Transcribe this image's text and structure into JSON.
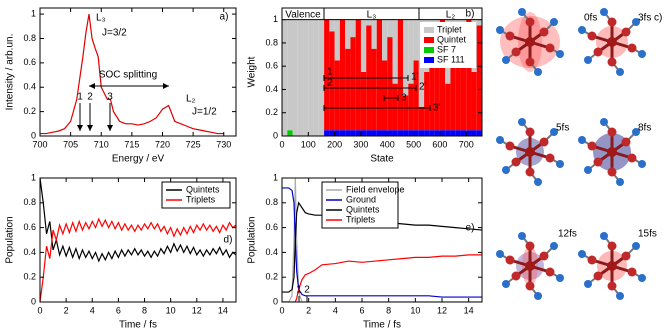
{
  "chart_data": [
    {
      "type": "line",
      "panel_label": "a)",
      "xlabel": "Energy / eV",
      "ylabel": "Intensity / arb.un.",
      "x": [
        700,
        701,
        702,
        703,
        704,
        705,
        706,
        707,
        707.5,
        708,
        708.5,
        709,
        709.5,
        710,
        711,
        711.5,
        712,
        713,
        714,
        715,
        716,
        717,
        718,
        719,
        720,
        721,
        722,
        723,
        724,
        725,
        726,
        727,
        728,
        729,
        730
      ],
      "series": [
        {
          "color": "#e00000",
          "values": [
            0.02,
            0.02,
            0.03,
            0.04,
            0.06,
            0.12,
            0.3,
            0.65,
            0.85,
            1.0,
            0.8,
            0.72,
            0.65,
            0.4,
            0.3,
            0.3,
            0.2,
            0.12,
            0.1,
            0.1,
            0.09,
            0.1,
            0.12,
            0.15,
            0.22,
            0.25,
            0.12,
            0.1,
            0.08,
            0.06,
            0.05,
            0.04,
            0.03,
            0.02,
            0.02
          ]
        }
      ],
      "xlim": [
        700,
        732
      ],
      "xticks": [
        700,
        705,
        710,
        715,
        720,
        725,
        730
      ],
      "ylim": [
        0,
        1.05
      ],
      "yticks": [
        0,
        0.2,
        0.4,
        0.6,
        0.8,
        1
      ],
      "annotations": [
        "L₃",
        "J=3/2",
        "SOC splitting",
        "1",
        "2",
        "3",
        "L₂",
        "J=1/2"
      ]
    },
    {
      "type": "bar",
      "stacked": true,
      "panel_label": "b)",
      "xlabel": "State",
      "ylabel": "Weight",
      "x": [
        0,
        20,
        40,
        60,
        80,
        100,
        120,
        140,
        160,
        180,
        200,
        220,
        240,
        260,
        280,
        300,
        320,
        340,
        360,
        380,
        400,
        420,
        440,
        460,
        480,
        500,
        520,
        540,
        560,
        580,
        600,
        620,
        640,
        660,
        680,
        700,
        720,
        740
      ],
      "series": [
        {
          "name": "Triplet",
          "color": "#c8c8c8",
          "values": [
            1,
            0.95,
            1,
            1,
            1,
            1,
            1,
            1,
            0,
            0.1,
            0.35,
            0,
            0.25,
            0.15,
            0,
            0.45,
            0.05,
            0.25,
            0,
            0.35,
            0.15,
            0.55,
            0,
            0.65,
            0.55,
            0.35,
            0.75,
            0.45,
            0.15,
            0.35,
            0,
            0.55,
            0.05,
            0.25,
            0.15,
            0,
            0.45,
            0.05
          ]
        },
        {
          "name": "Quintet",
          "color": "#ff0000",
          "values": [
            0,
            0,
            0,
            0,
            0,
            0,
            0,
            0,
            0.95,
            0.85,
            0.6,
            0.95,
            0.7,
            0.8,
            0.95,
            0.5,
            0.9,
            0.7,
            0.95,
            0.6,
            0.8,
            0.4,
            0.95,
            0.3,
            0.4,
            0.6,
            0.2,
            0.5,
            0.8,
            0.6,
            0.95,
            0.4,
            0.9,
            0.7,
            0.8,
            0.95,
            0.5,
            0.9
          ]
        },
        {
          "name": "SF 7",
          "color": "#00cc00",
          "values": [
            0,
            0.05,
            0,
            0,
            0,
            0,
            0,
            0,
            0,
            0,
            0,
            0,
            0,
            0,
            0,
            0,
            0,
            0,
            0,
            0,
            0,
            0,
            0,
            0,
            0,
            0,
            0,
            0,
            0,
            0,
            0,
            0,
            0,
            0,
            0,
            0,
            0,
            0
          ]
        },
        {
          "name": "SF 111",
          "color": "#0000ff",
          "values": [
            0,
            0,
            0,
            0,
            0,
            0,
            0,
            0,
            0.05,
            0.05,
            0.05,
            0.05,
            0.05,
            0.05,
            0.05,
            0.05,
            0.05,
            0.05,
            0.05,
            0.05,
            0.05,
            0.05,
            0.05,
            0.05,
            0.05,
            0.05,
            0.05,
            0.05,
            0.05,
            0.05,
            0.05,
            0.05,
            0.05,
            0.05,
            0.05,
            0.05,
            0.05,
            0.05
          ]
        }
      ],
      "xlim": [
        0,
        760
      ],
      "xticks": [
        0,
        100,
        200,
        300,
        400,
        500,
        600,
        700
      ],
      "ylim": [
        0,
        1.1
      ],
      "yticks": [
        0,
        0.2,
        0.4,
        0.6,
        0.8,
        1
      ],
      "legend": "top-right",
      "regions": [
        "Valence",
        "L₃",
        "L₂"
      ],
      "annotations": [
        "1",
        "2",
        "3",
        "1'",
        "2'",
        "3'"
      ]
    },
    {
      "type": "line",
      "panel_label": "d)",
      "xlabel": "Time / fs",
      "ylabel": "Population",
      "x": [
        0,
        0.25,
        0.5,
        0.75,
        1,
        1.25,
        1.5,
        1.75,
        2,
        2.25,
        2.5,
        2.75,
        3,
        3.25,
        3.5,
        3.75,
        4,
        4.25,
        4.5,
        4.75,
        5,
        5.25,
        5.5,
        5.75,
        6,
        6.25,
        6.5,
        6.75,
        7,
        7.25,
        7.5,
        7.75,
        8,
        8.25,
        8.5,
        8.75,
        9,
        9.25,
        9.5,
        9.75,
        10,
        10.25,
        10.5,
        10.75,
        11,
        11.25,
        11.5,
        11.75,
        12,
        12.25,
        12.5,
        12.75,
        13,
        13.25,
        13.5,
        13.75,
        14,
        14.25,
        14.5,
        14.75,
        15
      ],
      "series": [
        {
          "name": "Quintets",
          "color": "#000000",
          "values": [
            1.0,
            0.8,
            0.55,
            0.65,
            0.42,
            0.5,
            0.38,
            0.45,
            0.37,
            0.44,
            0.36,
            0.43,
            0.35,
            0.42,
            0.36,
            0.41,
            0.35,
            0.4,
            0.33,
            0.39,
            0.34,
            0.4,
            0.35,
            0.41,
            0.36,
            0.42,
            0.37,
            0.42,
            0.38,
            0.43,
            0.38,
            0.42,
            0.37,
            0.41,
            0.36,
            0.41,
            0.37,
            0.43,
            0.39,
            0.45,
            0.4,
            0.47,
            0.41,
            0.46,
            0.4,
            0.45,
            0.39,
            0.44,
            0.38,
            0.42,
            0.37,
            0.42,
            0.38,
            0.43,
            0.39,
            0.44,
            0.38,
            0.42,
            0.36,
            0.4,
            0.38
          ]
        },
        {
          "name": "Triplets",
          "color": "#ff0000",
          "values": [
            0,
            0.2,
            0.45,
            0.35,
            0.58,
            0.5,
            0.62,
            0.55,
            0.63,
            0.56,
            0.64,
            0.57,
            0.65,
            0.58,
            0.64,
            0.59,
            0.65,
            0.6,
            0.67,
            0.61,
            0.66,
            0.6,
            0.65,
            0.59,
            0.64,
            0.58,
            0.63,
            0.58,
            0.62,
            0.57,
            0.62,
            0.58,
            0.63,
            0.59,
            0.64,
            0.59,
            0.63,
            0.57,
            0.61,
            0.55,
            0.6,
            0.53,
            0.59,
            0.54,
            0.6,
            0.55,
            0.61,
            0.56,
            0.62,
            0.58,
            0.63,
            0.58,
            0.62,
            0.57,
            0.61,
            0.56,
            0.62,
            0.58,
            0.64,
            0.6,
            0.62
          ]
        }
      ],
      "xlim": [
        0,
        15
      ],
      "xticks": [
        0,
        2,
        4,
        6,
        8,
        10,
        12,
        14
      ],
      "ylim": [
        0,
        1
      ],
      "yticks": [
        0,
        0.2,
        0.4,
        0.6,
        0.8,
        1
      ],
      "legend": "top-right"
    },
    {
      "type": "line",
      "panel_label": "e)",
      "xlabel": "Time / fs",
      "ylabel": "Population",
      "x": [
        0,
        0.5,
        0.75,
        0.9,
        1,
        1.1,
        1.25,
        1.5,
        1.75,
        2,
        2.5,
        3,
        4,
        5,
        6,
        7,
        8,
        9,
        10,
        11,
        12,
        13,
        14,
        15
      ],
      "series": [
        {
          "name": "Field envelope",
          "color": "#aaaaaa",
          "values": [
            0,
            0,
            0.05,
            0.5,
            1,
            0.5,
            0.08,
            0,
            0,
            0,
            0,
            0,
            0,
            0,
            0,
            0,
            0,
            0,
            0,
            0,
            0,
            0,
            0,
            0
          ]
        },
        {
          "name": "Ground",
          "color": "#0000cc",
          "values": [
            0.92,
            0.92,
            0.9,
            0.8,
            0.5,
            0.25,
            0.1,
            0.06,
            0.05,
            0.05,
            0.05,
            0.05,
            0.05,
            0.05,
            0.05,
            0.05,
            0.05,
            0.05,
            0.05,
            0.05,
            0.04,
            0.04,
            0.04,
            0.04
          ]
        },
        {
          "name": "Quintets",
          "color": "#000000",
          "values": [
            0.08,
            0.08,
            0.1,
            0.2,
            0.5,
            0.72,
            0.8,
            0.76,
            0.72,
            0.71,
            0.7,
            0.7,
            0.68,
            0.66,
            0.66,
            0.65,
            0.64,
            0.63,
            0.62,
            0.62,
            0.61,
            0.6,
            0.59,
            0.58
          ]
        },
        {
          "name": "Triplets",
          "color": "#ff0000",
          "values": [
            0,
            0,
            0,
            0,
            0,
            0.03,
            0.1,
            0.18,
            0.22,
            0.23,
            0.26,
            0.3,
            0.31,
            0.33,
            0.32,
            0.33,
            0.34,
            0.35,
            0.36,
            0.36,
            0.37,
            0.37,
            0.38,
            0.38
          ]
        }
      ],
      "xlim": [
        0,
        15
      ],
      "xticks": [
        0,
        2,
        4,
        6,
        8,
        10,
        12,
        14
      ],
      "ylim": [
        0,
        1
      ],
      "yticks": [
        0,
        0.2,
        0.4,
        0.6,
        0.8,
        1
      ],
      "legend": "top-left",
      "annotations": [
        "1",
        "2"
      ]
    }
  ],
  "snapshots": {
    "panel_label": "c)",
    "frames": [
      "0fs",
      "3fs",
      "5fs",
      "8fs",
      "12fs",
      "15fs"
    ]
  }
}
